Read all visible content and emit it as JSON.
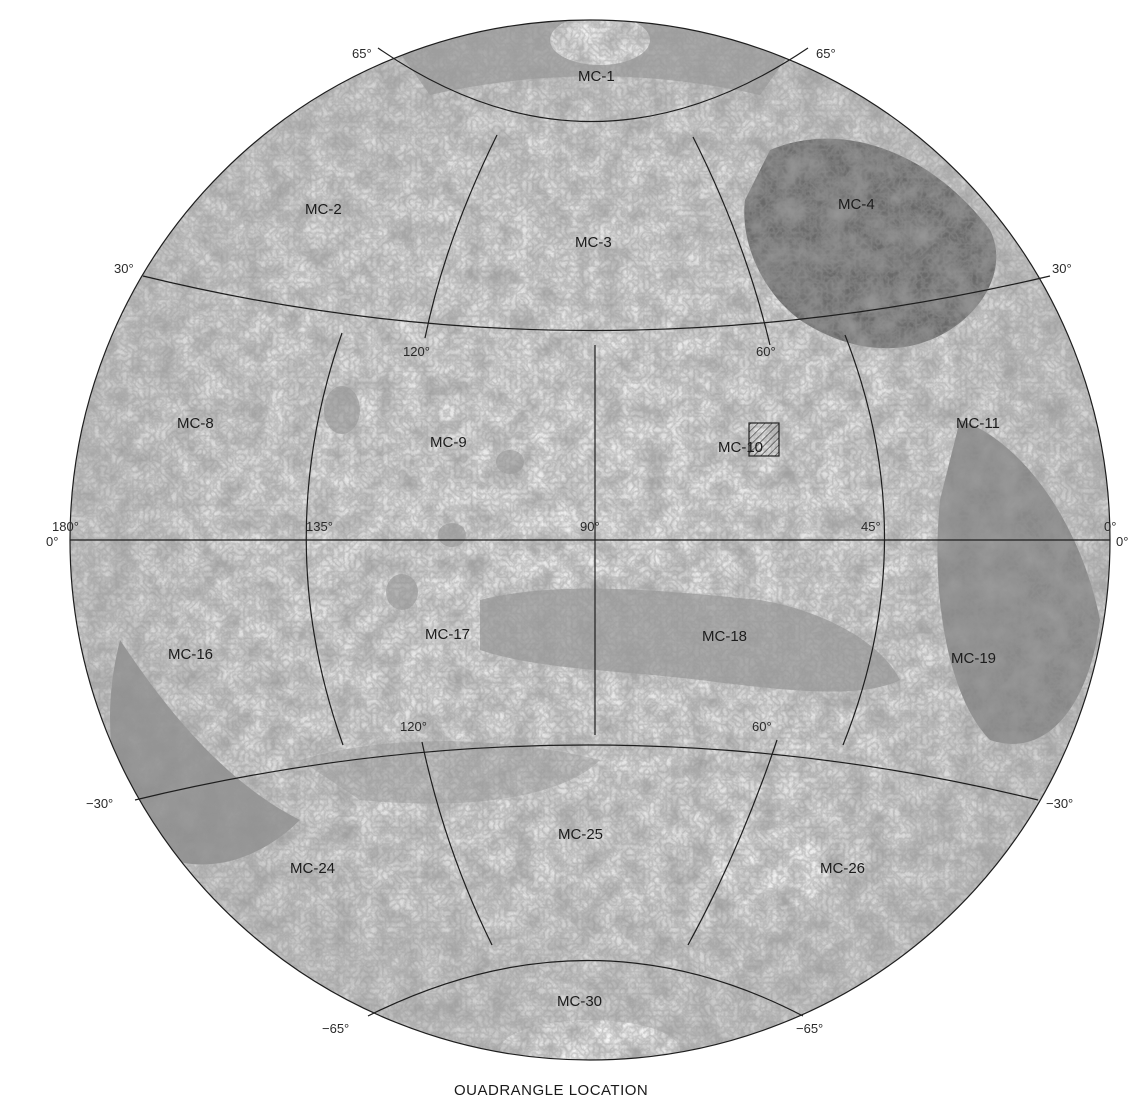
{
  "map": {
    "caption": "QUADRANGLE LOCATION",
    "colors": {
      "surface_light": "#e9e9e9",
      "surface_mid": "#bdbdbd",
      "surface_dark": "#5e5e5e",
      "grid": "#1e1e1e",
      "highlight_hatch": "#333333"
    },
    "quadrangles": [
      {
        "id": "MC-1",
        "label": "MC-1"
      },
      {
        "id": "MC-2",
        "label": "MC-2"
      },
      {
        "id": "MC-3",
        "label": "MC-3"
      },
      {
        "id": "MC-4",
        "label": "MC-4"
      },
      {
        "id": "MC-8",
        "label": "MC-8"
      },
      {
        "id": "MC-9",
        "label": "MC-9"
      },
      {
        "id": "MC-10",
        "label": "MC-10",
        "highlighted": true
      },
      {
        "id": "MC-11",
        "label": "MC-11"
      },
      {
        "id": "MC-16",
        "label": "MC-16"
      },
      {
        "id": "MC-17",
        "label": "MC-17"
      },
      {
        "id": "MC-18",
        "label": "MC-18"
      },
      {
        "id": "MC-19",
        "label": "MC-19"
      },
      {
        "id": "MC-24",
        "label": "MC-24"
      },
      {
        "id": "MC-25",
        "label": "MC-25"
      },
      {
        "id": "MC-26",
        "label": "MC-26"
      },
      {
        "id": "MC-30",
        "label": "MC-30"
      }
    ],
    "latitude_labels": {
      "n65_left": "65°",
      "n65_right": "65°",
      "n30_left": "30°",
      "n30_right": "30°",
      "s30_left": "−30°",
      "s30_right": "−30°",
      "s65_left": "−65°",
      "s65_right": "−65°"
    },
    "longitude_labels": {
      "lon180": "180°",
      "lon0_left": "0°",
      "lon0_right_a": "0°",
      "lon0_right_b": "0°",
      "lon135": "135°",
      "lon90": "90°",
      "lon45": "45°",
      "lon120_north": "120°",
      "lon60_north": "60°",
      "lon120_south": "120°",
      "lon60_south": "60°"
    }
  }
}
